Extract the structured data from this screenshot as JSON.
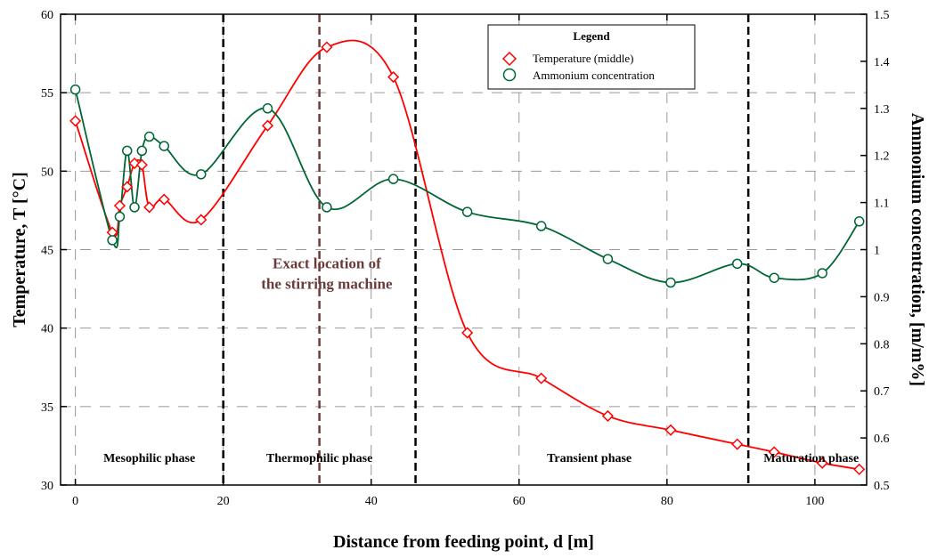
{
  "chart_data": {
    "type": "line",
    "xlabel": "Distance from feeding point, d [m]",
    "ylabel_left": "Temperature, T [°C]",
    "ylabel_right": "Ammonium concentration, [m/m%]",
    "xlim": [
      -2,
      107
    ],
    "ylim_left": [
      30,
      60
    ],
    "ylim_right": [
      0.5,
      1.5
    ],
    "x_ticks": [
      0,
      20,
      40,
      60,
      80,
      100
    ],
    "y_left_ticks": [
      30,
      35,
      40,
      45,
      50,
      55,
      60
    ],
    "y_right_ticks": [
      0.5,
      0.6,
      0.7,
      0.8,
      0.9,
      1.0,
      1.1,
      1.2,
      1.3,
      1.4,
      1.5
    ],
    "y_right_tick_labels": [
      "0.5",
      "0.6",
      "0.7",
      "0.8",
      "0.9",
      "1",
      "1.1",
      "1.2",
      "1.3",
      "1.4",
      "1.5"
    ],
    "grid": true,
    "legend": {
      "title": "Legend",
      "position": "top-right",
      "entries": [
        "Temperature (middle)",
        "Ammonium concentration"
      ]
    },
    "series": [
      {
        "name": "Temperature (middle)",
        "axis": "left",
        "color": "#ff0000",
        "marker": "diamond",
        "x": [
          0,
          5,
          6,
          7,
          8,
          9,
          10,
          12,
          17,
          26,
          34,
          43,
          53,
          63,
          72,
          80.5,
          89.5,
          94.5,
          101,
          106
        ],
        "y": [
          53.2,
          46.1,
          47.8,
          49.0,
          50.5,
          50.4,
          47.7,
          48.2,
          46.9,
          52.9,
          57.9,
          56.0,
          39.7,
          36.8,
          34.4,
          33.5,
          32.6,
          32.1,
          31.4,
          31.0
        ]
      },
      {
        "name": "Ammonium concentration",
        "axis": "right",
        "color": "#006633",
        "marker": "circle",
        "x": [
          0,
          5,
          6,
          7,
          8,
          9,
          10,
          12,
          17,
          26,
          34,
          43,
          53,
          63,
          72,
          80.5,
          89.5,
          94.5,
          101,
          106
        ],
        "y": [
          1.34,
          1.02,
          1.07,
          1.21,
          1.09,
          1.21,
          1.24,
          1.22,
          1.16,
          1.3,
          1.09,
          1.15,
          1.08,
          1.05,
          0.98,
          0.93,
          0.97,
          0.94,
          0.95,
          1.06
        ]
      }
    ],
    "phase_boundaries": [
      20,
      46,
      91
    ],
    "phases": [
      {
        "label": "Mesophilic phase",
        "x": 10
      },
      {
        "label": "Thermophilic phase",
        "x": 33
      },
      {
        "label": "Transient phase",
        "x": 69.5
      },
      {
        "label": "Maturation phase",
        "x": 99.5
      }
    ],
    "stirring_line_x": 33,
    "annotation": {
      "lines": [
        "Exact location of",
        "the stirring machine"
      ],
      "x": 34,
      "y_left": [
        43.8,
        42.5
      ]
    }
  }
}
